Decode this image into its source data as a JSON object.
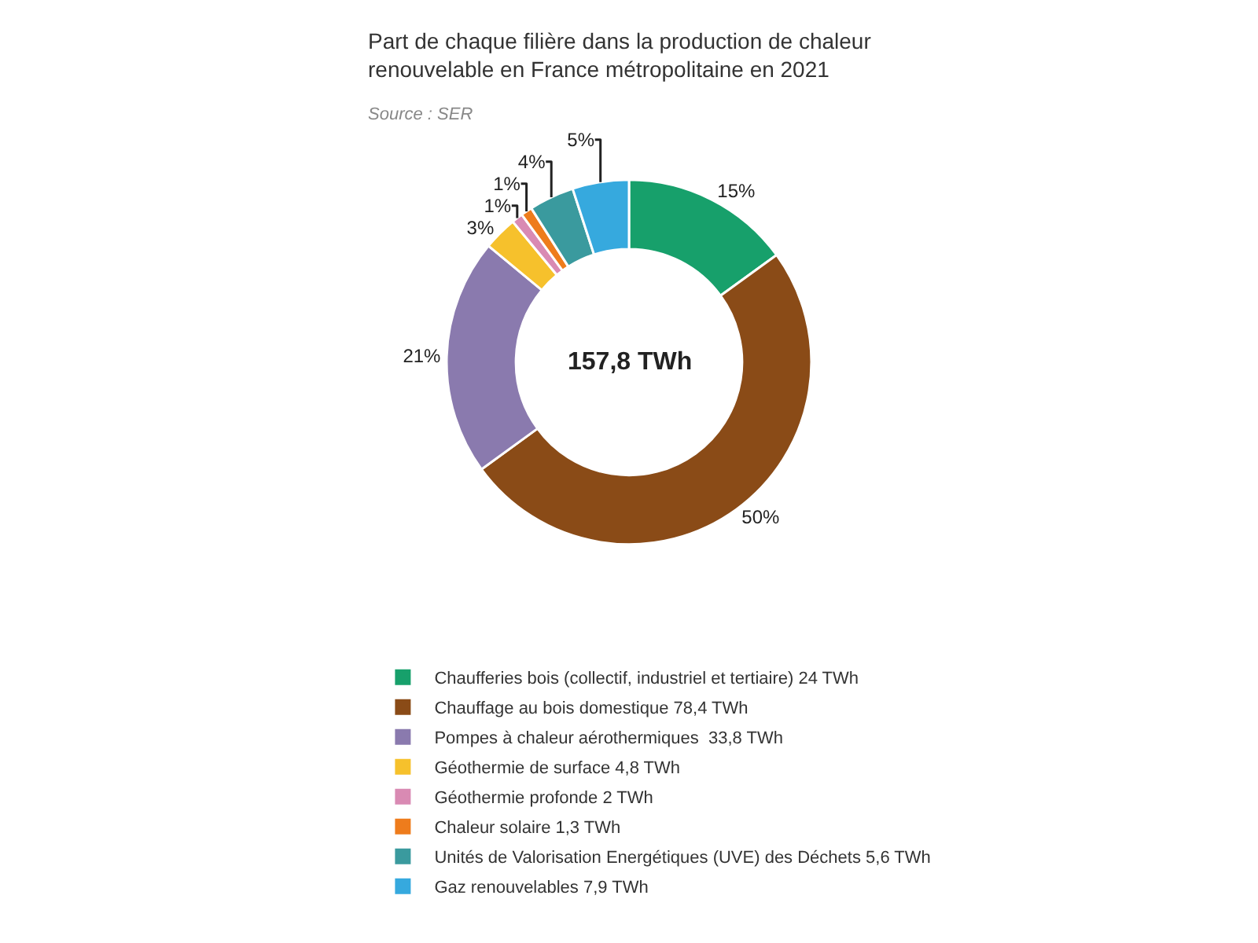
{
  "chart_data": {
    "type": "donut",
    "title": "Part de chaque filière dans la production de chaleur\nrenouvelable en France métropolitaine en 2021",
    "subtitle": "Source : SER",
    "annotations": [
      "157,8 TWh"
    ],
    "categories": [
      "Chaufferies bois (collectif, industriel et tertiaire) 24 TWh",
      "Chauffage au bois domestique 78,4 TWh",
      "Pompes à chaleur aérothermiques  33,8 TWh",
      "Géothermie de surface 4,8 TWh",
      "Géothermie profonde 2 TWh",
      "Chaleur solaire 1,3 TWh",
      "Unités de Valorisation Energétiques (UVE) des Déchets 5,6 TWh",
      "Gaz renouvelables 7,9 TWh"
    ],
    "values": [
      15,
      50,
      21,
      3,
      1,
      1,
      4,
      5
    ],
    "value_labels": [
      "15%",
      "50%",
      "21%",
      "3%",
      "1%",
      "1%",
      "4%",
      "5%"
    ],
    "colors": [
      "#17a06b",
      "#8a4b17",
      "#8a7aae",
      "#f6c12c",
      "#d98ab3",
      "#ee7c1c",
      "#3a9a9e",
      "#36a9de"
    ],
    "legend": "bottom"
  }
}
